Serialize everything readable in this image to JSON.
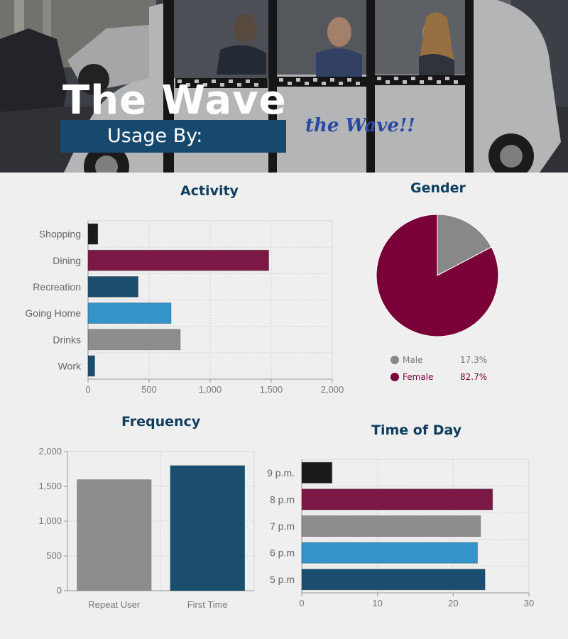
{
  "hero": {
    "title": "The Wave",
    "subtitle": "Usage By:",
    "vehicle_text": "the Wave!!",
    "colors": {
      "banner": "#17496e"
    }
  },
  "chart_data": [
    {
      "id": "activity",
      "type": "bar",
      "orientation": "horizontal",
      "title": "Activity",
      "categories": [
        "Shopping",
        "Dining",
        "Recreation",
        "Going Home",
        "Drinks",
        "Work"
      ],
      "values": [
        80,
        1480,
        410,
        680,
        755,
        55
      ],
      "colors": [
        "#1a1a1a",
        "#7b1846",
        "#1b4e6e",
        "#3493c8",
        "#8d8d8d",
        "#1b4e6e"
      ],
      "xlim": [
        0,
        2000
      ],
      "xticks": [
        "0",
        "500",
        "1,000",
        "1,500",
        "2,000"
      ],
      "grid": true
    },
    {
      "id": "gender",
      "type": "pie",
      "title": "Gender",
      "labels": [
        "Male",
        "Female"
      ],
      "values": [
        17.3,
        82.7
      ],
      "value_labels": [
        "17.3%",
        "82.7%"
      ],
      "colors": [
        "#888888",
        "#7a0138"
      ],
      "legend": "bottom"
    },
    {
      "id": "frequency",
      "type": "bar",
      "orientation": "vertical",
      "title": "Frequency",
      "categories": [
        "Repeat User",
        "First Time"
      ],
      "values": [
        1600,
        1800
      ],
      "colors": [
        "#8d8d8d",
        "#1b4e6e"
      ],
      "ylim": [
        0,
        2000
      ],
      "yticks": [
        "0",
        "500",
        "1,000",
        "1,500",
        "2,000"
      ],
      "grid": true
    },
    {
      "id": "time_of_day",
      "type": "bar",
      "orientation": "horizontal",
      "title": "Time of Day",
      "categories": [
        "9 p.m.",
        "8 p.m",
        "7 p.m",
        "6 p.m",
        "5 p.m"
      ],
      "values": [
        4,
        25.2,
        23.6,
        23.2,
        24.2
      ],
      "colors": [
        "#1a1a1a",
        "#7b1846",
        "#8d8d8d",
        "#3493c8",
        "#1b4e6e"
      ],
      "xlim": [
        0,
        30
      ],
      "xticks": [
        "0",
        "10",
        "20",
        "30"
      ],
      "grid": true
    }
  ]
}
